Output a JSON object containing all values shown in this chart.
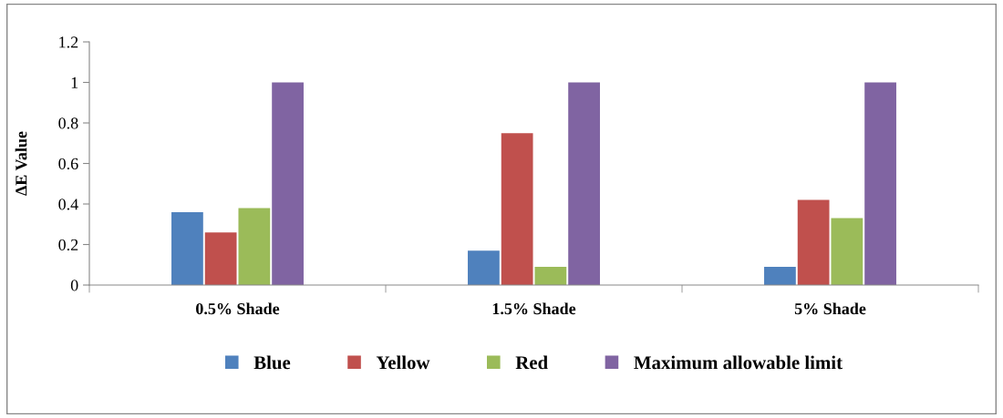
{
  "chart_data": {
    "type": "bar",
    "ylabel": "ΔE Value",
    "categories": [
      "0.5% Shade",
      "1.5% Shade",
      "5% Shade"
    ],
    "series": [
      {
        "name": "Blue",
        "color": "#4f81bd",
        "values": [
          0.36,
          0.17,
          0.09
        ]
      },
      {
        "name": "Yellow",
        "color": "#c0504d",
        "values": [
          0.26,
          0.75,
          0.42
        ]
      },
      {
        "name": "Red",
        "color": "#9bbb59",
        "values": [
          0.38,
          0.09,
          0.33
        ]
      },
      {
        "name": "Maximum allowable limit",
        "color": "#8064a2",
        "values": [
          1,
          1,
          1
        ]
      }
    ],
    "ylim": [
      0,
      1.2
    ],
    "yticks": [
      0,
      0.2,
      0.4,
      0.6,
      0.8,
      1,
      1.2
    ],
    "grid": false,
    "legend": "bottom"
  }
}
